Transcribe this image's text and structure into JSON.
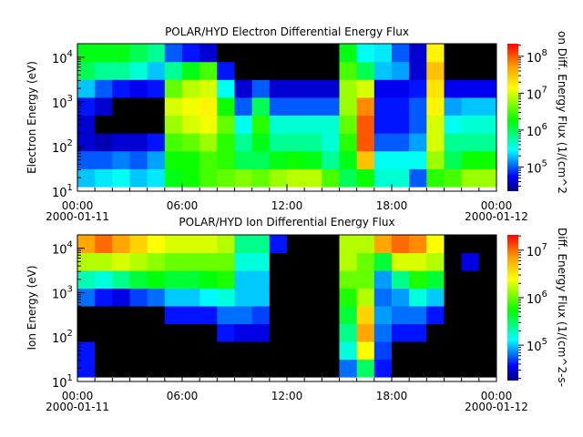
{
  "chart_data": [
    {
      "type": "heatmap",
      "title": "POLAR/HYD  Electron Differential Energy Flux",
      "ylabel": "Electron Energy (eV)",
      "colorbar_label": "on Diff. Energy Flux (1/(cm^2",
      "y_scale": "log",
      "ylim": [
        10,
        20000
      ],
      "color_scale": "log",
      "color_range": [
        22000,
        220000000
      ],
      "colorbar_ticks": [
        "5",
        "6",
        "7",
        "8"
      ],
      "y_ticks": [
        "1",
        "2",
        "3",
        "4"
      ],
      "x_ticks": [
        "00:00",
        "06:00",
        "12:00",
        "18:00",
        "00:00"
      ],
      "x_dates": [
        "2000-01-11",
        "",
        "",
        "",
        "2000-01-12"
      ],
      "time_hours": [
        0,
        1,
        2,
        3,
        4,
        5,
        6,
        7,
        8,
        9,
        10,
        11,
        12,
        13,
        14,
        15,
        16,
        17,
        18,
        19,
        20,
        21,
        22,
        23
      ],
      "energy_log10_bins": [
        1.3,
        1.7,
        2.1,
        2.5,
        2.9,
        3.3,
        3.7,
        4.1
      ],
      "log10_flux": [
        [
          5.3,
          5.0,
          4.6,
          4.6,
          4.8,
          5.3,
          6.0,
          6.2
        ],
        [
          5.4,
          5.0,
          4.5,
          null,
          4.6,
          5.0,
          5.8,
          6.2
        ],
        [
          5.5,
          5.1,
          4.6,
          null,
          null,
          4.8,
          5.8,
          6.2
        ],
        [
          5.3,
          5.0,
          4.6,
          null,
          null,
          4.7,
          5.6,
          6.0
        ],
        [
          5.4,
          5.2,
          4.8,
          null,
          null,
          4.8,
          5.3,
          5.8
        ],
        [
          6.2,
          6.3,
          6.5,
          6.8,
          7.0,
          6.6,
          5.8,
          5.0
        ],
        [
          6.3,
          6.3,
          6.6,
          7.0,
          7.1,
          6.9,
          6.2,
          4.8
        ],
        [
          6.5,
          6.5,
          6.8,
          7.1,
          7.2,
          7.0,
          6.5,
          4.6
        ],
        [
          6.6,
          6.4,
          6.4,
          6.6,
          6.3,
          5.5,
          4.8,
          null
        ],
        [
          6.7,
          6.0,
          5.8,
          5.5,
          5.0,
          4.6,
          null,
          null
        ],
        [
          6.6,
          6.0,
          6.2,
          6.4,
          6.0,
          5.0,
          null,
          null
        ],
        [
          6.8,
          6.2,
          5.8,
          5.6,
          5.0,
          4.6,
          null,
          null
        ],
        [
          6.9,
          6.3,
          5.8,
          5.6,
          5.0,
          4.6,
          null,
          null
        ],
        [
          6.9,
          6.2,
          5.8,
          5.6,
          5.0,
          4.6,
          null,
          null
        ],
        [
          6.5,
          5.8,
          5.6,
          5.6,
          5.0,
          4.6,
          null,
          null
        ],
        [
          6.0,
          6.2,
          6.4,
          6.6,
          6.8,
          6.8,
          6.5,
          6.2
        ],
        [
          6.3,
          7.5,
          8.0,
          8.0,
          7.8,
          7.0,
          6.0,
          5.5
        ],
        [
          5.6,
          5.5,
          5.0,
          4.8,
          4.8,
          4.7,
          5.3,
          5.4
        ],
        [
          5.6,
          5.5,
          5.0,
          4.8,
          4.8,
          4.7,
          5.2,
          5.0
        ],
        [
          5.0,
          5.5,
          5.2,
          5.0,
          5.0,
          4.8,
          4.6,
          4.6
        ],
        [
          6.4,
          6.8,
          7.0,
          7.0,
          7.2,
          7.3,
          7.5,
          7.2
        ],
        [
          6.5,
          6.0,
          5.8,
          5.5,
          5.2,
          4.7,
          null,
          null
        ],
        [
          6.8,
          6.3,
          5.8,
          5.6,
          5.3,
          4.7,
          null,
          null
        ],
        [
          6.8,
          6.3,
          5.8,
          5.6,
          5.3,
          4.7,
          null,
          null
        ]
      ]
    },
    {
      "type": "heatmap",
      "title": "POLAR/HYD  Ion Differential Energy Flux",
      "ylabel": "Ion Energy (eV)",
      "colorbar_label": "Diff. Energy Flux (1/(cm^2-s-",
      "y_scale": "log",
      "ylim": [
        10,
        20000
      ],
      "color_scale": "log",
      "color_range": [
        18000,
        21000000
      ],
      "colorbar_ticks": [
        "5",
        "6",
        "7"
      ],
      "y_ticks": [
        "1",
        "2",
        "3",
        "4"
      ],
      "x_ticks": [
        "00:00",
        "06:00",
        "12:00",
        "18:00",
        "00:00"
      ],
      "x_dates": [
        "2000-01-11",
        "",
        "",
        "",
        "2000-01-12"
      ],
      "time_hours": [
        0,
        1,
        2,
        3,
        4,
        5,
        6,
        7,
        8,
        9,
        10,
        11,
        12,
        13,
        14,
        15,
        16,
        17,
        18,
        19,
        20,
        21,
        22,
        23
      ],
      "energy_log10_bins": [
        1.3,
        1.7,
        2.1,
        2.5,
        2.9,
        3.3,
        3.7,
        4.1
      ],
      "log10_flux": [
        [
          4.6,
          4.6,
          null,
          null,
          4.8,
          5.3,
          6.2,
          6.8
        ],
        [
          null,
          null,
          null,
          null,
          4.6,
          5.2,
          6.2,
          7.0
        ],
        [
          null,
          null,
          null,
          null,
          4.5,
          5.4,
          6.3,
          6.8
        ],
        [
          null,
          null,
          null,
          null,
          4.7,
          5.6,
          6.2,
          6.6
        ],
        [
          null,
          null,
          null,
          null,
          4.8,
          5.7,
          6.1,
          6.4
        ],
        [
          null,
          null,
          null,
          4.6,
          5.0,
          5.6,
          6.0,
          6.3
        ],
        [
          null,
          null,
          null,
          4.6,
          5.0,
          5.6,
          6.0,
          6.3
        ],
        [
          null,
          null,
          null,
          4.6,
          5.1,
          5.7,
          6.0,
          6.3
        ],
        [
          null,
          null,
          4.6,
          4.8,
          5.2,
          5.8,
          6.0,
          6.2
        ],
        [
          null,
          null,
          4.5,
          4.8,
          5.0,
          5.0,
          5.2,
          5.4
        ],
        [
          null,
          null,
          4.5,
          4.7,
          5.0,
          5.0,
          5.2,
          5.4
        ],
        [
          null,
          null,
          null,
          null,
          null,
          null,
          null,
          4.6
        ],
        [
          null,
          null,
          null,
          null,
          null,
          null,
          null,
          null
        ],
        [
          null,
          null,
          null,
          null,
          null,
          null,
          null,
          null
        ],
        [
          null,
          null,
          null,
          null,
          null,
          null,
          null,
          null
        ],
        [
          4.8,
          5.2,
          5.4,
          5.6,
          5.8,
          6.0,
          6.2,
          6.2
        ],
        [
          5.5,
          6.4,
          6.8,
          6.6,
          6.2,
          6.0,
          6.0,
          6.2
        ],
        [
          4.6,
          4.7,
          4.8,
          4.9,
          4.8,
          4.9,
          5.6,
          6.8
        ],
        [
          null,
          null,
          4.6,
          4.8,
          4.9,
          5.4,
          6.3,
          7.0
        ],
        [
          null,
          null,
          4.6,
          4.8,
          5.2,
          5.8,
          6.3,
          6.9
        ],
        [
          null,
          null,
          null,
          4.6,
          5.0,
          5.6,
          6.2,
          6.4
        ],
        [
          null,
          null,
          null,
          null,
          null,
          null,
          null,
          null
        ],
        [
          null,
          null,
          null,
          null,
          null,
          null,
          4.5,
          null
        ],
        [
          null,
          null,
          null,
          null,
          null,
          null,
          null,
          null
        ]
      ]
    }
  ],
  "colors": {
    "no_data": "#000000",
    "background": "#ffffff"
  }
}
